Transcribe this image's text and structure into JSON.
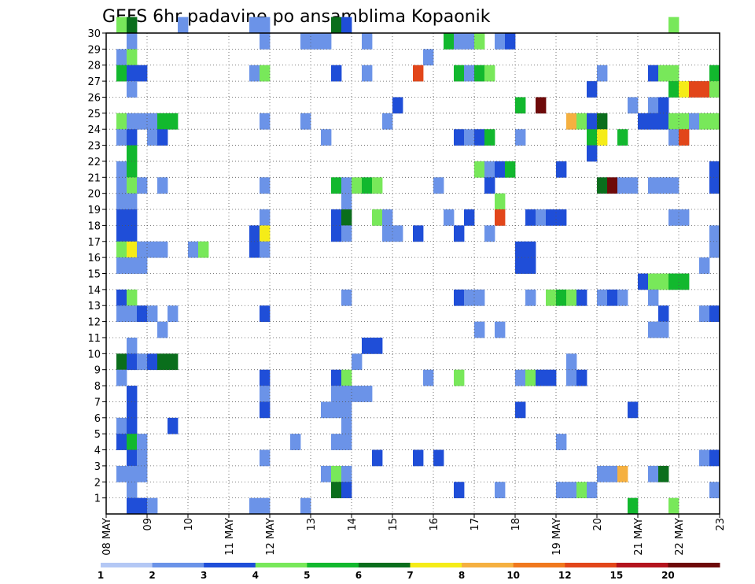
{
  "chart_data": {
    "type": "heatmap",
    "title": "GEFS 6hr padavine po ansamblima Kopaonik",
    "xlabel": "",
    "ylabel": "",
    "x_ticks": [
      "08 MAY",
      "09",
      "10",
      "11 MAY",
      "12 MAY",
      "13",
      "14",
      "15",
      "16",
      "17",
      "18",
      "19 MAY",
      "20",
      "21 MAY",
      "22 MAY",
      "23"
    ],
    "x_range": [
      0,
      60
    ],
    "y_ticks": [
      1,
      2,
      3,
      4,
      5,
      6,
      7,
      8,
      9,
      10,
      11,
      12,
      13,
      14,
      15,
      16,
      17,
      18,
      19,
      20,
      21,
      22,
      23,
      24,
      25,
      26,
      27,
      28,
      29,
      30
    ],
    "y_range": [
      0,
      30
    ],
    "grid": true,
    "colorbar": {
      "labels": [
        "1",
        "2",
        "3",
        "4",
        "5",
        "6",
        "7",
        "8",
        "10",
        "12",
        "15",
        "20"
      ],
      "colors": [
        "#b4c8f5",
        "#6b93e8",
        "#1f4ed8",
        "#78e85a",
        "#12b82e",
        "#0a6e1c",
        "#f5ec18",
        "#f5b040",
        "#f0781e",
        "#e2461a",
        "#b4141e",
        "#6e0a0a"
      ]
    },
    "cells": [
      [
        1,
        30,
        3
      ],
      [
        2,
        30,
        5
      ],
      [
        7,
        30,
        1
      ],
      [
        14,
        30,
        1
      ],
      [
        15,
        30,
        1
      ],
      [
        22,
        30,
        5
      ],
      [
        23,
        30,
        2
      ],
      [
        55,
        30,
        3
      ],
      [
        2,
        29,
        1
      ],
      [
        15,
        29,
        1
      ],
      [
        19,
        29,
        1
      ],
      [
        20,
        29,
        1
      ],
      [
        21,
        29,
        1
      ],
      [
        25,
        29,
        1
      ],
      [
        33,
        29,
        4
      ],
      [
        34,
        29,
        1
      ],
      [
        35,
        29,
        1
      ],
      [
        36,
        29,
        3
      ],
      [
        38,
        29,
        1
      ],
      [
        39,
        29,
        2
      ],
      [
        1,
        28,
        1
      ],
      [
        2,
        28,
        3
      ],
      [
        31,
        28,
        1
      ],
      [
        1,
        27,
        4
      ],
      [
        2,
        27,
        2
      ],
      [
        3,
        27,
        2
      ],
      [
        14,
        27,
        1
      ],
      [
        15,
        27,
        3
      ],
      [
        22,
        27,
        2
      ],
      [
        25,
        27,
        1
      ],
      [
        30,
        27,
        9
      ],
      [
        34,
        27,
        4
      ],
      [
        35,
        27,
        1
      ],
      [
        36,
        27,
        4
      ],
      [
        37,
        27,
        3
      ],
      [
        48,
        27,
        1
      ],
      [
        53,
        27,
        2
      ],
      [
        54,
        27,
        3
      ],
      [
        55,
        27,
        3
      ],
      [
        59,
        27,
        4
      ],
      [
        2,
        26,
        1
      ],
      [
        47,
        26,
        2
      ],
      [
        55,
        26,
        4
      ],
      [
        56,
        26,
        6
      ],
      [
        57,
        26,
        9
      ],
      [
        58,
        26,
        9
      ],
      [
        59,
        26,
        3
      ],
      [
        28,
        25,
        2
      ],
      [
        40,
        25,
        4
      ],
      [
        42,
        25,
        11
      ],
      [
        51,
        25,
        1
      ],
      [
        53,
        25,
        1
      ],
      [
        54,
        25,
        2
      ],
      [
        1,
        24,
        3
      ],
      [
        2,
        24,
        1
      ],
      [
        3,
        24,
        1
      ],
      [
        4,
        24,
        1
      ],
      [
        5,
        24,
        4
      ],
      [
        6,
        24,
        4
      ],
      [
        15,
        24,
        1
      ],
      [
        19,
        24,
        1
      ],
      [
        27,
        24,
        1
      ],
      [
        45,
        24,
        7
      ],
      [
        46,
        24,
        3
      ],
      [
        47,
        24,
        2
      ],
      [
        48,
        24,
        5
      ],
      [
        52,
        24,
        2
      ],
      [
        53,
        24,
        2
      ],
      [
        54,
        24,
        2
      ],
      [
        55,
        24,
        3
      ],
      [
        56,
        24,
        3
      ],
      [
        57,
        24,
        1
      ],
      [
        58,
        24,
        3
      ],
      [
        59,
        24,
        3
      ],
      [
        1,
        23,
        1
      ],
      [
        2,
        23,
        2
      ],
      [
        4,
        23,
        1
      ],
      [
        5,
        23,
        2
      ],
      [
        21,
        23,
        1
      ],
      [
        34,
        23,
        2
      ],
      [
        35,
        23,
        1
      ],
      [
        36,
        23,
        2
      ],
      [
        37,
        23,
        4
      ],
      [
        40,
        23,
        1
      ],
      [
        47,
        23,
        4
      ],
      [
        48,
        23,
        6
      ],
      [
        50,
        23,
        4
      ],
      [
        55,
        23,
        1
      ],
      [
        56,
        23,
        9
      ],
      [
        2,
        22,
        4
      ],
      [
        47,
        22,
        2
      ],
      [
        1,
        21,
        1
      ],
      [
        2,
        21,
        4
      ],
      [
        36,
        21,
        3
      ],
      [
        37,
        21,
        1
      ],
      [
        38,
        21,
        2
      ],
      [
        39,
        21,
        4
      ],
      [
        44,
        21,
        2
      ],
      [
        59,
        21,
        2
      ],
      [
        1,
        20,
        1
      ],
      [
        2,
        20,
        3
      ],
      [
        3,
        20,
        1
      ],
      [
        5,
        20,
        1
      ],
      [
        15,
        20,
        1
      ],
      [
        22,
        20,
        4
      ],
      [
        23,
        20,
        1
      ],
      [
        24,
        20,
        3
      ],
      [
        25,
        20,
        4
      ],
      [
        26,
        20,
        3
      ],
      [
        32,
        20,
        1
      ],
      [
        37,
        20,
        2
      ],
      [
        48,
        20,
        5
      ],
      [
        49,
        20,
        11
      ],
      [
        50,
        20,
        1
      ],
      [
        51,
        20,
        1
      ],
      [
        53,
        20,
        1
      ],
      [
        54,
        20,
        1
      ],
      [
        55,
        20,
        1
      ],
      [
        59,
        20,
        2
      ],
      [
        1,
        19,
        1
      ],
      [
        2,
        19,
        1
      ],
      [
        23,
        19,
        1
      ],
      [
        38,
        19,
        3
      ],
      [
        1,
        18,
        2
      ],
      [
        2,
        18,
        2
      ],
      [
        15,
        18,
        1
      ],
      [
        22,
        18,
        2
      ],
      [
        23,
        18,
        5
      ],
      [
        26,
        18,
        3
      ],
      [
        27,
        18,
        1
      ],
      [
        33,
        18,
        1
      ],
      [
        35,
        18,
        2
      ],
      [
        38,
        18,
        9
      ],
      [
        41,
        18,
        2
      ],
      [
        42,
        18,
        1
      ],
      [
        43,
        18,
        2
      ],
      [
        44,
        18,
        2
      ],
      [
        55,
        18,
        1
      ],
      [
        56,
        18,
        1
      ],
      [
        1,
        17,
        2
      ],
      [
        2,
        17,
        2
      ],
      [
        14,
        17,
        2
      ],
      [
        15,
        17,
        6
      ],
      [
        22,
        17,
        2
      ],
      [
        23,
        17,
        1
      ],
      [
        27,
        17,
        1
      ],
      [
        28,
        17,
        1
      ],
      [
        30,
        17,
        2
      ],
      [
        34,
        17,
        2
      ],
      [
        37,
        17,
        1
      ],
      [
        59,
        17,
        1
      ],
      [
        1,
        16,
        3
      ],
      [
        2,
        16,
        6
      ],
      [
        3,
        16,
        1
      ],
      [
        4,
        16,
        1
      ],
      [
        5,
        16,
        1
      ],
      [
        8,
        16,
        1
      ],
      [
        9,
        16,
        3
      ],
      [
        14,
        16,
        2
      ],
      [
        15,
        16,
        1
      ],
      [
        40,
        16,
        2
      ],
      [
        41,
        16,
        2
      ],
      [
        59,
        16,
        1
      ],
      [
        1,
        15,
        1
      ],
      [
        2,
        15,
        1
      ],
      [
        3,
        15,
        1
      ],
      [
        40,
        15,
        2
      ],
      [
        41,
        15,
        2
      ],
      [
        58,
        15,
        1
      ],
      [
        52,
        14,
        2
      ],
      [
        53,
        14,
        3
      ],
      [
        54,
        14,
        3
      ],
      [
        55,
        14,
        4
      ],
      [
        56,
        14,
        4
      ],
      [
        1,
        13,
        2
      ],
      [
        2,
        13,
        3
      ],
      [
        23,
        13,
        1
      ],
      [
        34,
        13,
        2
      ],
      [
        35,
        13,
        1
      ],
      [
        36,
        13,
        1
      ],
      [
        41,
        13,
        1
      ],
      [
        43,
        13,
        3
      ],
      [
        44,
        13,
        4
      ],
      [
        45,
        13,
        3
      ],
      [
        46,
        13,
        2
      ],
      [
        48,
        13,
        1
      ],
      [
        49,
        13,
        2
      ],
      [
        50,
        13,
        1
      ],
      [
        53,
        13,
        1
      ],
      [
        1,
        12,
        1
      ],
      [
        2,
        12,
        1
      ],
      [
        3,
        12,
        2
      ],
      [
        4,
        12,
        1
      ],
      [
        6,
        12,
        1
      ],
      [
        15,
        12,
        2
      ],
      [
        54,
        12,
        2
      ],
      [
        58,
        12,
        1
      ],
      [
        59,
        12,
        2
      ],
      [
        5,
        11,
        1
      ],
      [
        36,
        11,
        1
      ],
      [
        38,
        11,
        1
      ],
      [
        53,
        11,
        1
      ],
      [
        54,
        11,
        1
      ],
      [
        2,
        10,
        1
      ],
      [
        25,
        10,
        2
      ],
      [
        26,
        10,
        2
      ],
      [
        1,
        9,
        5
      ],
      [
        2,
        9,
        2
      ],
      [
        3,
        9,
        1
      ],
      [
        4,
        9,
        2
      ],
      [
        5,
        9,
        5
      ],
      [
        6,
        9,
        5
      ],
      [
        24,
        9,
        1
      ],
      [
        45,
        9,
        1
      ],
      [
        1,
        8,
        1
      ],
      [
        15,
        8,
        2
      ],
      [
        22,
        8,
        2
      ],
      [
        23,
        8,
        3
      ],
      [
        31,
        8,
        1
      ],
      [
        34,
        8,
        3
      ],
      [
        40,
        8,
        1
      ],
      [
        41,
        8,
        3
      ],
      [
        42,
        8,
        2
      ],
      [
        43,
        8,
        2
      ],
      [
        45,
        8,
        1
      ],
      [
        46,
        8,
        2
      ],
      [
        2,
        7,
        2
      ],
      [
        15,
        7,
        1
      ],
      [
        22,
        7,
        1
      ],
      [
        23,
        7,
        1
      ],
      [
        24,
        7,
        1
      ],
      [
        25,
        7,
        1
      ],
      [
        2,
        6,
        2
      ],
      [
        15,
        6,
        2
      ],
      [
        21,
        6,
        1
      ],
      [
        22,
        6,
        1
      ],
      [
        23,
        6,
        1
      ],
      [
        40,
        6,
        2
      ],
      [
        51,
        6,
        2
      ],
      [
        1,
        5,
        1
      ],
      [
        2,
        5,
        2
      ],
      [
        6,
        5,
        2
      ],
      [
        23,
        5,
        1
      ],
      [
        1,
        4,
        2
      ],
      [
        2,
        4,
        4
      ],
      [
        3,
        4,
        1
      ],
      [
        18,
        4,
        1
      ],
      [
        22,
        4,
        1
      ],
      [
        23,
        4,
        1
      ],
      [
        44,
        4,
        1
      ],
      [
        2,
        3,
        2
      ],
      [
        3,
        3,
        1
      ],
      [
        15,
        3,
        1
      ],
      [
        26,
        3,
        2
      ],
      [
        30,
        3,
        2
      ],
      [
        32,
        3,
        2
      ],
      [
        58,
        3,
        1
      ],
      [
        59,
        3,
        2
      ],
      [
        1,
        2,
        1
      ],
      [
        2,
        2,
        1
      ],
      [
        3,
        2,
        1
      ],
      [
        21,
        2,
        1
      ],
      [
        22,
        2,
        3
      ],
      [
        23,
        2,
        1
      ],
      [
        48,
        2,
        1
      ],
      [
        49,
        2,
        1
      ],
      [
        50,
        2,
        7
      ],
      [
        53,
        2,
        1
      ],
      [
        54,
        2,
        5
      ],
      [
        2,
        1,
        1
      ],
      [
        22,
        1,
        5
      ],
      [
        23,
        1,
        2
      ],
      [
        34,
        1,
        2
      ],
      [
        38,
        1,
        1
      ],
      [
        44,
        1,
        1
      ],
      [
        45,
        1,
        1
      ],
      [
        46,
        1,
        3
      ],
      [
        47,
        1,
        1
      ],
      [
        59,
        1,
        1
      ],
      [
        2,
        0,
        2
      ],
      [
        3,
        0,
        2
      ],
      [
        4,
        0,
        1
      ],
      [
        14,
        0,
        1
      ],
      [
        15,
        0,
        1
      ],
      [
        19,
        0,
        1
      ],
      [
        51,
        0,
        4
      ],
      [
        55,
        0,
        3
      ]
    ]
  }
}
